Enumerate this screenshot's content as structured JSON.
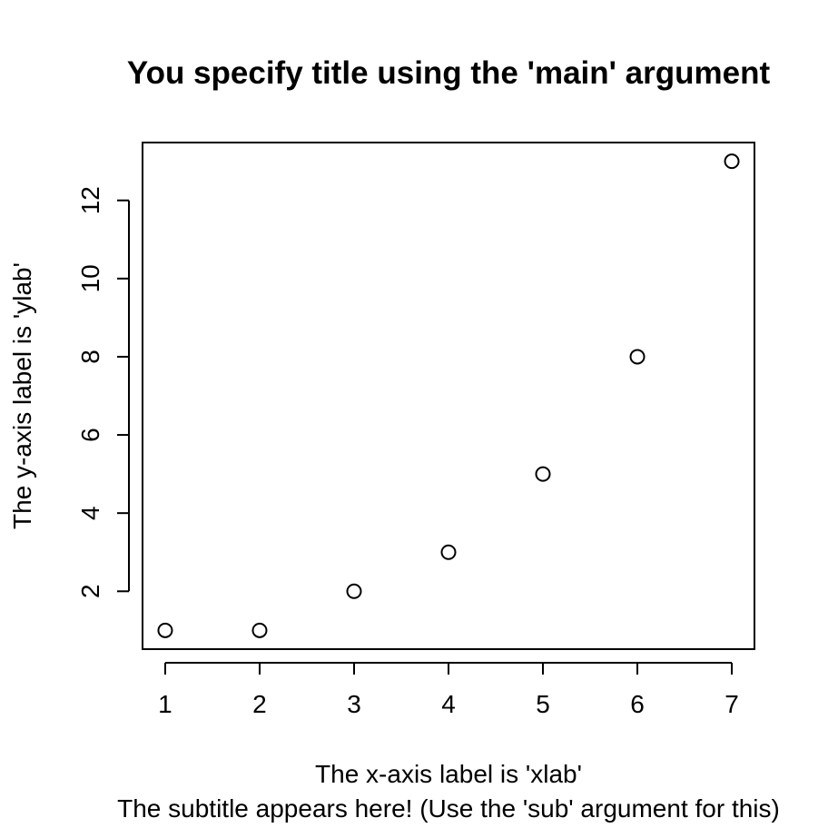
{
  "chart_data": {
    "type": "scatter",
    "title": "You specify title using the 'main' argument",
    "subtitle": "The subtitle appears here! (Use the 'sub' argument for this)",
    "xlabel": "The x-axis label is 'xlab'",
    "ylabel": "The y-axis label is 'ylab'",
    "x": [
      1,
      2,
      3,
      4,
      5,
      6,
      7
    ],
    "y": [
      1,
      1,
      2,
      3,
      5,
      8,
      13
    ],
    "x_ticks": [
      1,
      2,
      3,
      4,
      5,
      6,
      7
    ],
    "y_ticks": [
      2,
      4,
      6,
      8,
      10,
      12
    ],
    "xlim": [
      0.76,
      7.24
    ],
    "ylim": [
      0.52,
      13.48
    ],
    "marker": "open-circle",
    "grid": false,
    "legend": "none",
    "color": "#000000"
  }
}
